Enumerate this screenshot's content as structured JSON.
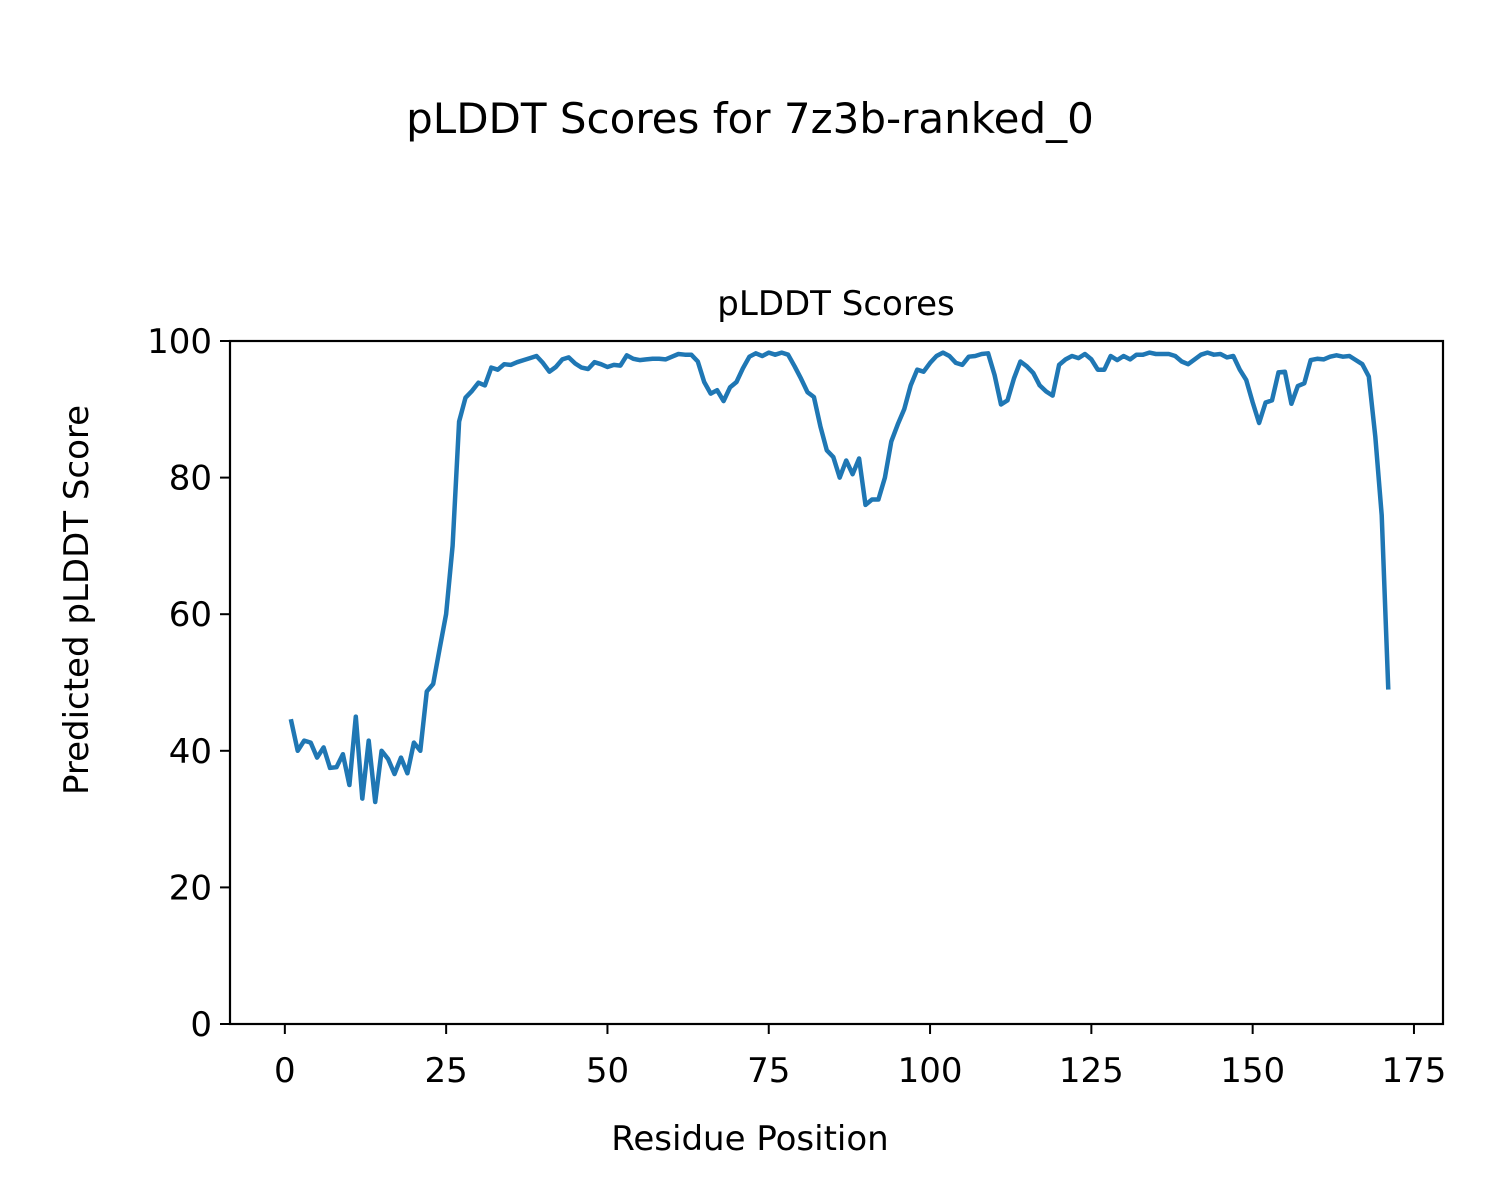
{
  "figure": {
    "suptitle": "pLDDT Scores for 7z3b-ranked_0"
  },
  "colors": {
    "line": "#1f77b4",
    "axes": "#000000",
    "background": "#ffffff"
  },
  "chart_data": {
    "type": "line",
    "title": "pLDDT Scores",
    "xlabel": "Residue Position",
    "ylabel": "Predicted pLDDT Score",
    "xlim": [
      -8.5,
      179.5
    ],
    "ylim": [
      0,
      100
    ],
    "xticks": [
      0,
      25,
      50,
      75,
      100,
      125,
      150,
      175
    ],
    "yticks": [
      0,
      20,
      40,
      60,
      80,
      100
    ],
    "grid": false,
    "legend": "none",
    "series": [
      {
        "x_start": 1,
        "values": [
          44.3,
          40.0,
          41.5,
          41.2,
          39.0,
          40.5,
          37.5,
          37.6,
          39.5,
          35.0,
          45.0,
          33.0,
          41.5,
          32.5,
          40.0,
          38.8,
          36.6,
          39.0,
          36.7,
          41.2,
          40.0,
          48.7,
          49.8,
          55.0,
          60.0,
          70.0,
          88.2,
          91.7,
          92.7,
          93.9,
          93.5,
          96.1,
          95.8,
          96.6,
          96.5,
          96.9,
          97.2,
          97.5,
          97.8,
          96.8,
          95.5,
          96.2,
          97.3,
          97.6,
          96.7,
          96.1,
          95.9,
          96.9,
          96.6,
          96.2,
          96.5,
          96.4,
          97.9,
          97.4,
          97.2,
          97.3,
          97.4,
          97.4,
          97.3,
          97.7,
          98.1,
          98.0,
          98.0,
          97.0,
          94.0,
          92.3,
          92.8,
          91.2,
          93.2,
          94.0,
          96.0,
          97.7,
          98.2,
          97.8,
          98.3,
          98.0,
          98.3,
          98.0,
          96.3,
          94.5,
          92.5,
          91.8,
          87.5,
          84.0,
          83.0,
          80.0,
          82.5,
          80.5,
          82.8,
          76.0,
          76.8,
          76.8,
          80.0,
          85.3,
          87.8,
          90.0,
          93.5,
          95.8,
          95.5,
          96.8,
          97.8,
          98.3,
          97.8,
          96.8,
          96.5,
          97.7,
          97.8,
          98.1,
          98.2,
          95.0,
          90.7,
          91.3,
          94.5,
          97.0,
          96.3,
          95.3,
          93.5,
          92.6,
          92.0,
          96.5,
          97.3,
          97.8,
          97.5,
          98.1,
          97.3,
          95.8,
          95.8,
          97.8,
          97.2,
          97.8,
          97.3,
          98.0,
          98.0,
          98.3,
          98.1,
          98.1,
          98.1,
          97.8,
          97.0,
          96.6,
          97.3,
          98.0,
          98.3,
          98.0,
          98.1,
          97.6,
          97.8,
          95.8,
          94.3,
          91.0,
          88.0,
          91.0,
          91.3,
          95.4,
          95.5,
          90.8,
          93.4,
          93.8,
          97.2,
          97.4,
          97.3,
          97.7,
          97.9,
          97.7,
          97.8,
          97.2,
          96.6,
          94.8,
          86.0,
          74.5,
          49.3
        ]
      }
    ]
  }
}
